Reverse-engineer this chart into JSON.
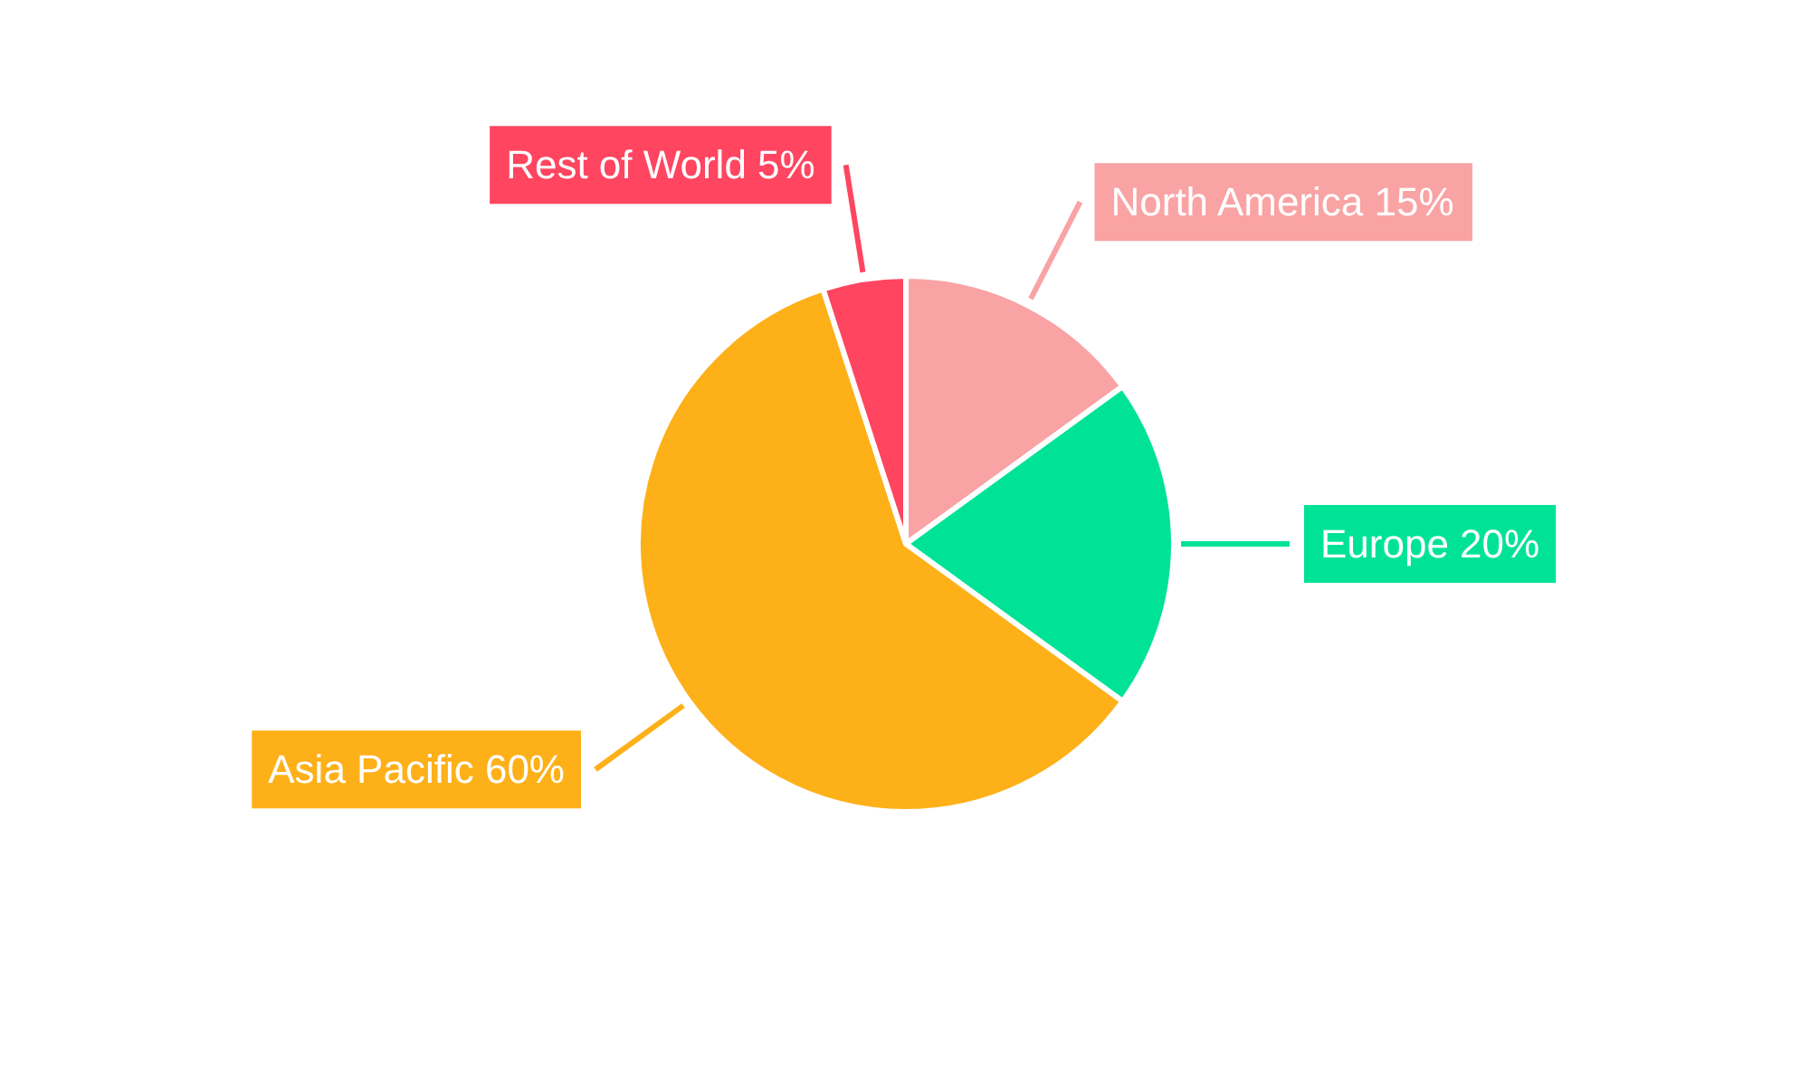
{
  "chart_data": {
    "type": "pie",
    "categories": [
      "North America",
      "Europe",
      "Asia Pacific",
      "Rest of World"
    ],
    "values": [
      15,
      20,
      60,
      5
    ],
    "colors": [
      "#f9a3a4",
      "#00e396",
      "#feb019",
      "#ff4560"
    ],
    "value_labels": [
      "15%",
      "20%",
      "60%",
      "5%"
    ]
  }
}
